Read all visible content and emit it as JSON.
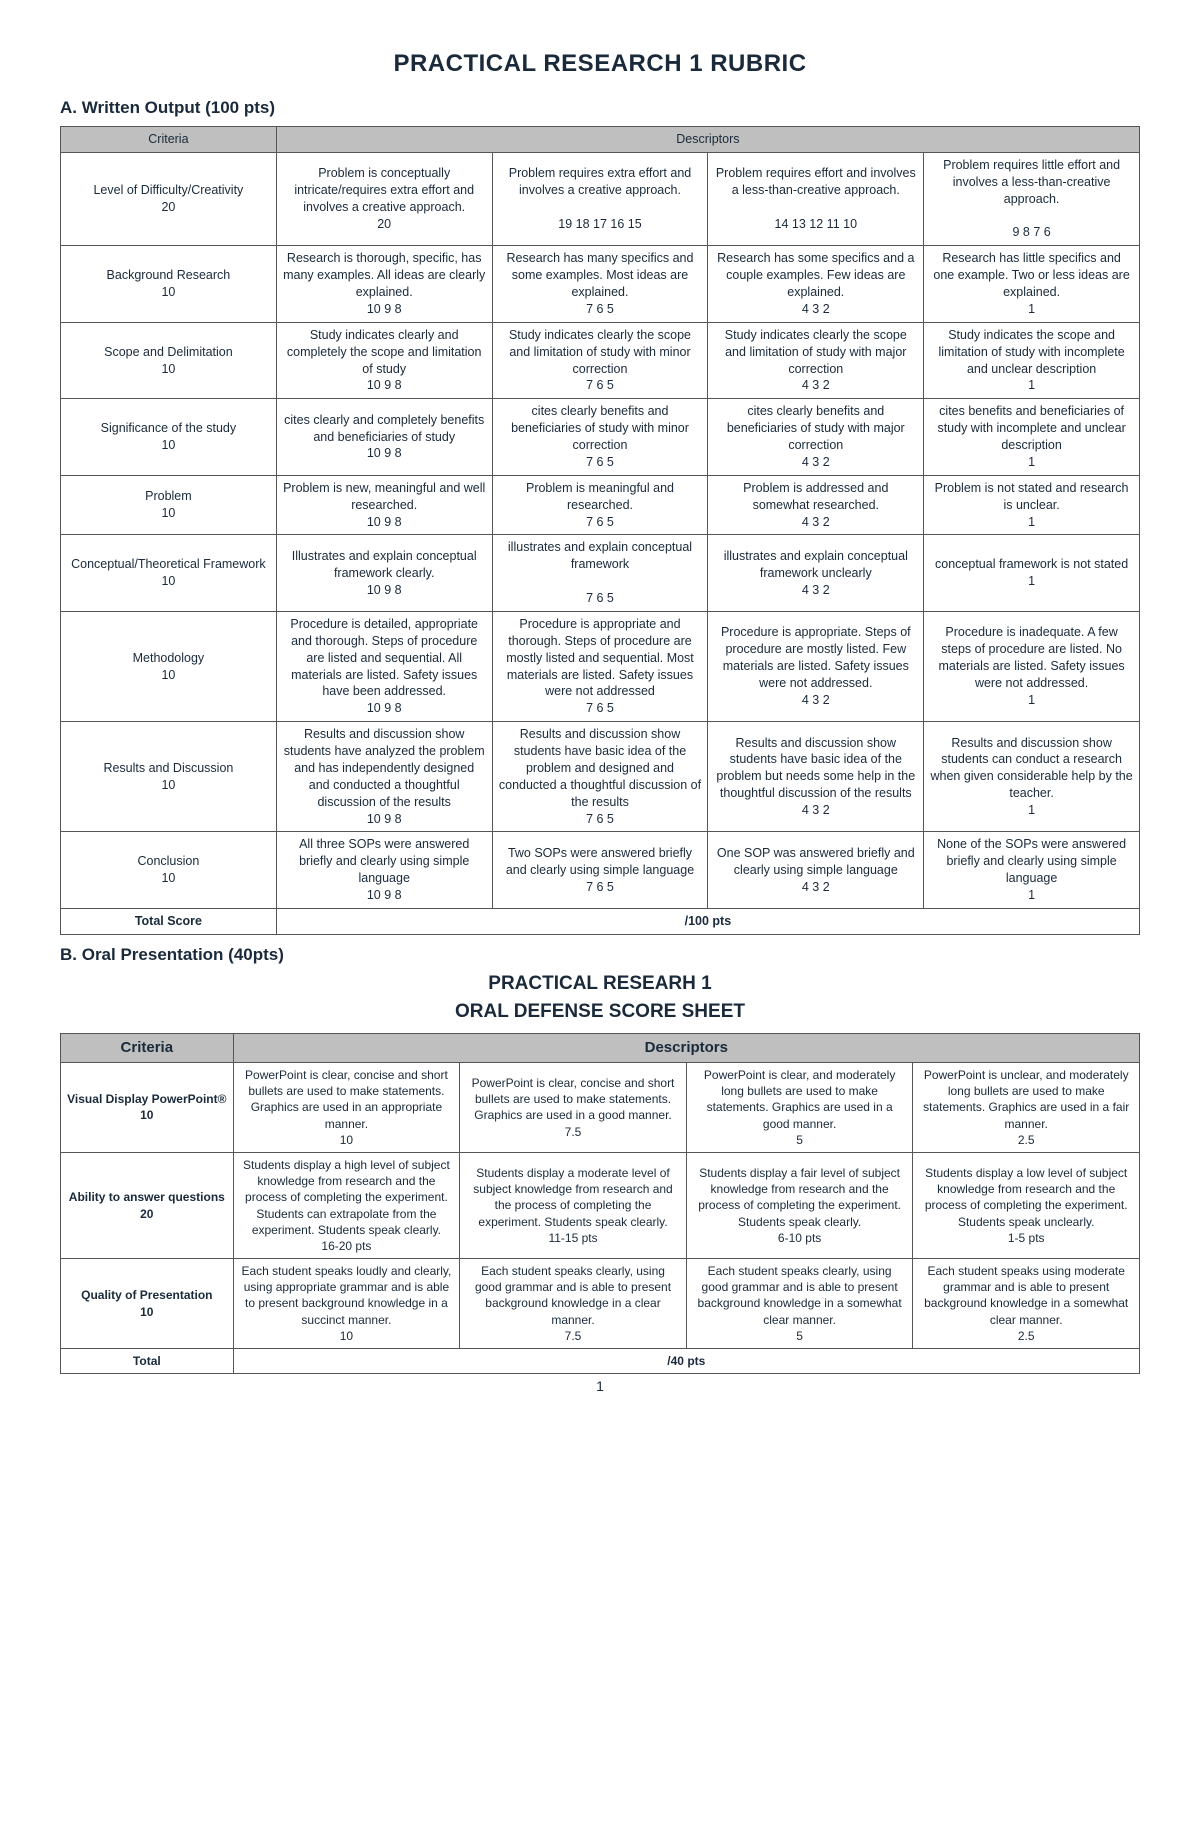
{
  "title": "PRACTICAL RESEARCH  1 RUBRIC",
  "sectionA": "A. Written Output (100 pts)",
  "headers1": {
    "criteria": "Criteria",
    "descriptors": "Descriptors"
  },
  "rows1": [
    {
      "criteria": "Level of Difficulty/Creativity\n20",
      "d1": "Problem is conceptually intricate/requires extra effort and involves a creative approach.\n20",
      "d2": "Problem requires extra effort and involves a creative approach.\n\n19    18    17    16    15",
      "d3": "Problem requires effort and involves a less-than-creative approach.\n\n14    13    12    11   10",
      "d4": "Problem requires little effort and involves a less-than-creative approach.\n\n9     8     7     6"
    },
    {
      "criteria": "Background Research\n10",
      "d1": "Research is thorough, specific, has many examples. All ideas are clearly explained.\n10  9  8",
      "d2": "Research has many specifics and some examples. Most ideas are explained.\n7  6  5",
      "d3": "Research has some specifics and a couple examples. Few ideas are explained.\n4  3  2",
      "d4": "Research has little specifics and one example. Two or less ideas are explained.\n1"
    },
    {
      "criteria": "Scope and Delimitation\n10",
      "d1": "Study indicates clearly and completely the scope and limitation of study\n10  9  8",
      "d2": "Study indicates clearly the scope and limitation of study with minor correction\n7  6  5",
      "d3": "Study indicates clearly the scope and limitation of study with major correction\n4  3  2",
      "d4": "Study indicates the scope and limitation of study with incomplete and unclear description\n1"
    },
    {
      "criteria": "Significance of the study\n10",
      "d1": "cites  clearly and completely benefits and beneficiaries of study\n10  9  8",
      "d2": "cites  clearly benefits and beneficiaries of study with minor correction\n7  6  5",
      "d3": "cites  clearly benefits and beneficiaries of study with major correction\n4  3  2",
      "d4": "cites  benefits and beneficiaries of study with incomplete and unclear description\n1"
    },
    {
      "criteria": "Problem\n10",
      "d1": "Problem is new, meaningful and well researched.\n10  9  8",
      "d2": "Problem is meaningful and researched.\n7  6  5",
      "d3": "Problem is addressed and somewhat researched.\n4  3  2",
      "d4": "Problem is not stated and research is unclear.\n1"
    },
    {
      "criteria": "Conceptual/Theoretical Framework\n10",
      "d1": "Illustrates and explain conceptual framework clearly.\n10  9  8",
      "d2": "illustrates and explain conceptual framework\n\n7  6  5",
      "d3": "illustrates and explain conceptual framework unclearly\n4  3  2",
      "d4": "conceptual framework is not stated\n1"
    },
    {
      "criteria": "Methodology\n10",
      "d1": "Procedure is detailed, appropriate and thorough. Steps of procedure are listed and sequential. All materials are listed. Safety issues have been addressed.\n10  9  8",
      "d2": "Procedure is appropriate and thorough. Steps of procedure are mostly listed and sequential. Most materials are listed. Safety issues were not addressed\n7  6  5",
      "d3": "Procedure is appropriate. Steps of procedure are mostly listed. Few materials are listed. Safety issues were not addressed.\n4  3  2",
      "d4": "Procedure is inadequate. A few steps of procedure are listed. No materials are listed. Safety issues were not addressed.\n1"
    },
    {
      "criteria": "Results and Discussion\n10",
      "d1": "Results and discussion show students have analyzed the problem and has independently designed and conducted a thoughtful discussion of the results\n10  9  8",
      "d2": "Results and discussion show students have basic idea of the problem and designed and conducted a thoughtful discussion of the results\n7  6  5",
      "d3": "Results and discussion show students have basic idea of the problem but needs some help in the thoughtful discussion of the results\n4  3  2",
      "d4": "Results and discussion show students can conduct a research when given considerable help by the teacher.\n1"
    },
    {
      "criteria": "Conclusion\n10",
      "d1": "All three SOPs were answered briefly and clearly using simple language\n10  9  8",
      "d2": "Two SOPs were answered briefly and clearly using simple language\n7  6  5",
      "d3": "One SOP was answered briefly and clearly using simple language\n4  3  2",
      "d4": "None of the SOPs were answered briefly and clearly using simple language\n1"
    }
  ],
  "total1": {
    "label": "Total Score",
    "value": "/100 pts"
  },
  "sectionB": "B. Oral Presentation (40pts)",
  "subtitle1": "PRACTICAL RESEARH 1",
  "subtitle2": "ORAL DEFENSE SCORE SHEET",
  "headers2": {
    "criteria": "Criteria",
    "descriptors": "Descriptors"
  },
  "rows2": [
    {
      "criteria": "Visual Display PowerPoint®\n10",
      "d1": "PowerPoint is clear, concise and short bullets are used to make statements. Graphics are used in an appropriate manner.\n10",
      "d2": "PowerPoint is clear, concise and short bullets are used to make statements. Graphics are used in a good manner.\n7.5",
      "d3": "PowerPoint is clear, and moderately long bullets are used to make statements. Graphics are used in a good manner.\n5",
      "d4": "PowerPoint is unclear, and moderately long bullets are used to make statements. Graphics are used in a fair manner.\n2.5"
    },
    {
      "criteria": "Ability to answer questions\n20",
      "d1": "Students display a high level of subject knowledge from research and the process of completing the experiment. Students can extrapolate from the experiment. Students speak clearly.\n16-20 pts",
      "d2": "Students display a moderate level of subject knowledge from research and the process of completing the experiment. Students speak clearly.\n11-15 pts",
      "d3": "Students display a fair level of subject knowledge from research and the process of completing the experiment. Students speak clearly.\n6-10 pts",
      "d4": "Students display a low level of subject knowledge from research and the process of completing the experiment. Students speak unclearly.\n1-5 pts"
    },
    {
      "criteria": "Quality of Presentation\n10",
      "d1": "Each student speaks loudly and clearly, using appropriate grammar and is able to present background knowledge in a succinct manner.\n10",
      "d2": "Each student speaks clearly, using good grammar and is able to present background knowledge in a clear manner.\n7.5",
      "d3": "Each student speaks clearly, using good grammar and is able to present background knowledge in a somewhat clear manner.\n5",
      "d4": "Each student speaks using moderate grammar and is able to present background knowledge in a somewhat clear manner.\n2.5"
    }
  ],
  "total2": {
    "label": "Total",
    "value": "/40 pts"
  },
  "pageNumber": "1"
}
